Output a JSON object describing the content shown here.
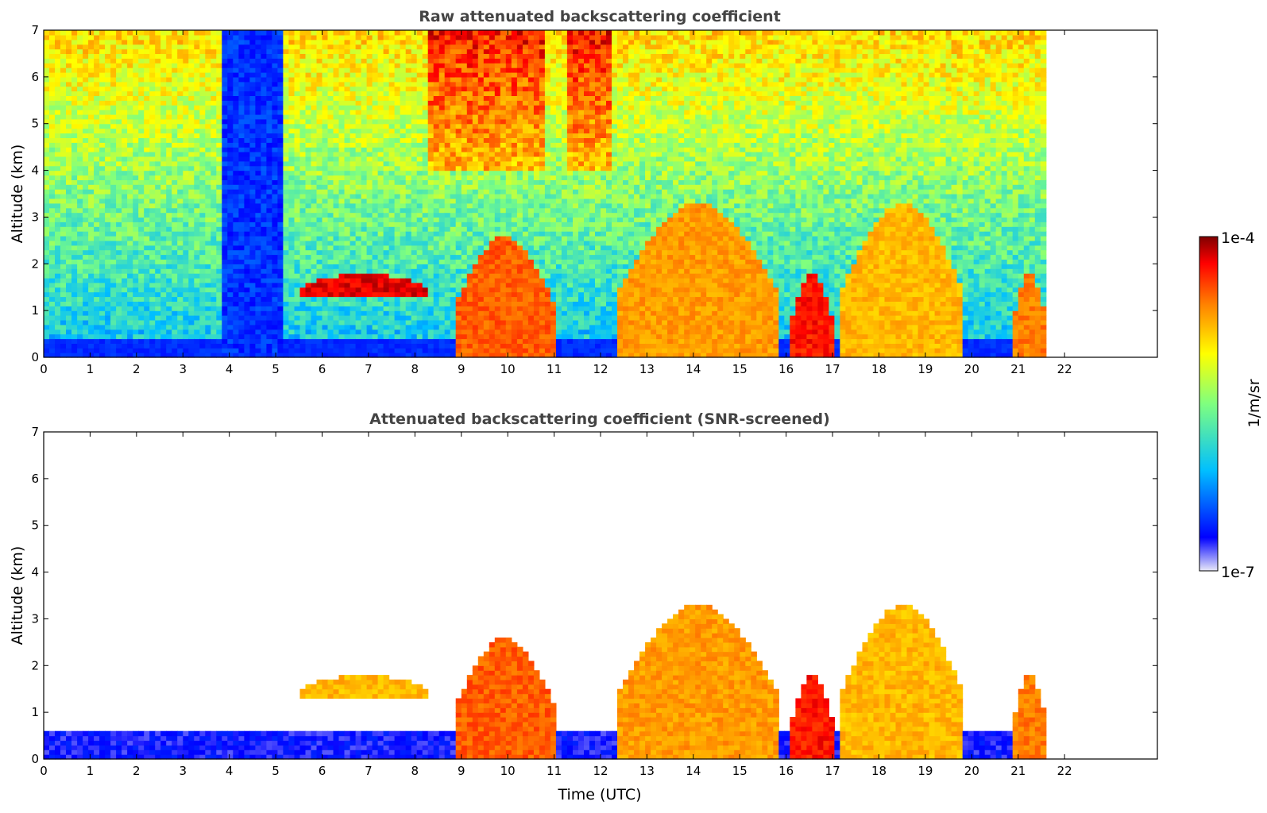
{
  "chart_data": [
    {
      "type": "heatmap",
      "title": "Raw attenuated backscattering coefficient",
      "xlabel": "",
      "ylabel": "Altitude (km)",
      "xlim": [
        0,
        24
      ],
      "ylim": [
        0,
        7
      ],
      "x_ticks": [
        0,
        1,
        2,
        3,
        4,
        5,
        6,
        7,
        8,
        9,
        10,
        11,
        12,
        13,
        14,
        15,
        16,
        17,
        18,
        19,
        20,
        21,
        22
      ],
      "y_ticks": [
        0,
        1,
        2,
        3,
        4,
        5,
        6,
        7
      ],
      "data_time_end": 21.6,
      "features": [
        {
          "name": "boundary-layer",
          "x": [
            0,
            21.6
          ],
          "top_km": 0.5,
          "value": "1e-6.5"
        },
        {
          "name": "aerosol-layer",
          "x": [
            5.5,
            8.3
          ],
          "y_km": [
            1.3,
            1.8
          ],
          "value": "1e-4.2"
        },
        {
          "name": "cloud-column",
          "x": [
            8.9,
            11.0
          ],
          "y_km": [
            0,
            2.6
          ],
          "value": "1e-4.5"
        },
        {
          "name": "cloud-column",
          "x": [
            12.4,
            15.8
          ],
          "y_km": [
            0,
            3.3
          ],
          "value": "1e-4.7"
        },
        {
          "name": "cloud-column",
          "x": [
            16.1,
            17.0
          ],
          "y_km": [
            0,
            1.8
          ],
          "value": "1e-4.3"
        },
        {
          "name": "cloud-layer",
          "x": [
            17.2,
            19.8
          ],
          "y_km": [
            0,
            3.3
          ],
          "value": "1e-4.8"
        },
        {
          "name": "cloud-layer",
          "x": [
            20.9,
            21.6
          ],
          "y_km": [
            0,
            1.8
          ],
          "value": "1e-4.6"
        }
      ]
    },
    {
      "type": "heatmap",
      "title": "Attenuated backscattering coefficient (SNR-screened)",
      "xlabel": "Time (UTC)",
      "ylabel": "Altitude (km)",
      "xlim": [
        0,
        24
      ],
      "ylim": [
        0,
        7
      ],
      "x_ticks": [
        0,
        1,
        2,
        3,
        4,
        5,
        6,
        7,
        8,
        9,
        10,
        11,
        12,
        13,
        14,
        15,
        16,
        17,
        18,
        19,
        20,
        21,
        22
      ],
      "y_ticks": [
        0,
        1,
        2,
        3,
        4,
        5,
        6,
        7
      ],
      "data_time_end": 21.6,
      "features": [
        {
          "name": "boundary-layer",
          "x": [
            0,
            21.6
          ],
          "top_km": 0.6,
          "value": "1e-6.6"
        },
        {
          "name": "aerosol-layer",
          "x": [
            5.5,
            8.3
          ],
          "y_km": [
            1.3,
            1.8
          ],
          "value": "1e-4.8"
        },
        {
          "name": "cloud-column",
          "x": [
            8.9,
            11.0
          ],
          "y_km": [
            0,
            2.6
          ],
          "value": "1e-4.5"
        },
        {
          "name": "cloud-column",
          "x": [
            12.4,
            15.8
          ],
          "y_km": [
            0,
            3.3
          ],
          "value": "1e-4.7"
        },
        {
          "name": "cloud-column",
          "x": [
            16.1,
            17.0
          ],
          "y_km": [
            0,
            1.8
          ],
          "value": "1e-4.3"
        },
        {
          "name": "cloud-layer",
          "x": [
            17.2,
            19.8
          ],
          "y_km": [
            0,
            3.3
          ],
          "value": "1e-4.8"
        },
        {
          "name": "cloud-layer",
          "x": [
            20.9,
            21.6
          ],
          "y_km": [
            0,
            1.8
          ],
          "value": "1e-4.6"
        }
      ]
    }
  ],
  "colorbar": {
    "label": "1/m/sr",
    "max_label": "1e-4",
    "min_label": "1e-7",
    "colormap": "jet",
    "colors": [
      "#e8e8f8",
      "#0000ff",
      "#00bfff",
      "#7fff7f",
      "#ffff00",
      "#ff7f00",
      "#ff0000",
      "#7f0000"
    ]
  }
}
